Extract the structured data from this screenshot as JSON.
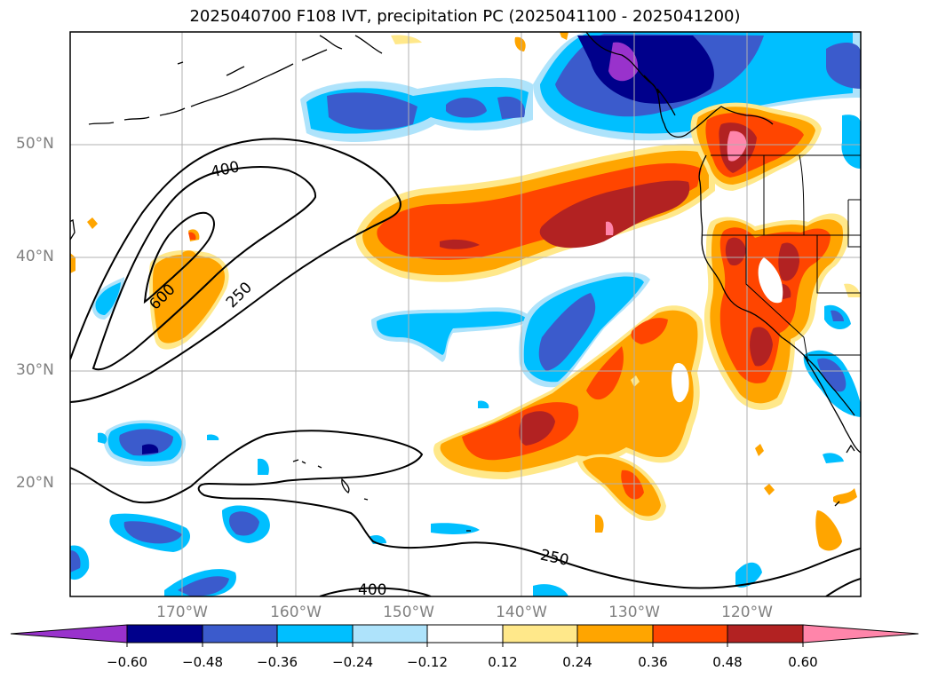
{
  "title": "2025040700 F108 IVT, precipitation PC (2025041100 - 2025041200)",
  "map": {
    "lat_labels": [
      "50°N",
      "40°N",
      "30°N",
      "20°N"
    ],
    "lon_labels": [
      "170°W",
      "160°W",
      "150°W",
      "140°W",
      "130°W",
      "120°W"
    ],
    "contour_labels": [
      "400",
      "600",
      "250",
      "250",
      "400"
    ]
  },
  "colorbar": {
    "tick_labels": [
      "−0.60",
      "−0.48",
      "−0.36",
      "−0.24",
      "−0.12",
      "0.12",
      "0.24",
      "0.36",
      "0.48",
      "0.60"
    ],
    "colors": [
      "#9932cc",
      "#00008b",
      "#3b5bcc",
      "#00bfff",
      "#aee3fb",
      "#ffffff",
      "#ffe88a",
      "#ffa500",
      "#ff4500",
      "#b22222",
      "#ff85aa"
    ]
  }
}
